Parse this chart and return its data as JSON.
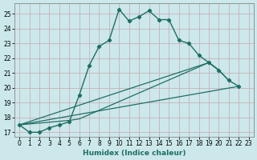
{
  "xlabel": "Humidex (Indice chaleur)",
  "background_color": "#cce8ea",
  "grid_color": "#b0d0d3",
  "line_color": "#1e6e64",
  "xlim": [
    -0.5,
    23.5
  ],
  "ylim": [
    16.7,
    25.7
  ],
  "xticks": [
    0,
    1,
    2,
    3,
    4,
    5,
    6,
    7,
    8,
    9,
    10,
    11,
    12,
    13,
    14,
    15,
    16,
    17,
    18,
    19,
    20,
    21,
    22,
    23
  ],
  "yticks": [
    17,
    18,
    19,
    20,
    21,
    22,
    23,
    24,
    25
  ],
  "main_x": [
    0,
    1,
    2,
    3,
    4,
    5,
    6,
    7,
    8,
    9,
    10,
    11,
    12,
    13,
    14,
    15,
    16,
    17,
    18,
    19,
    20,
    21,
    22
  ],
  "main_y": [
    17.5,
    17.0,
    17.0,
    17.3,
    17.5,
    17.7,
    19.5,
    21.5,
    22.8,
    23.2,
    25.3,
    24.5,
    24.8,
    25.2,
    24.6,
    24.6,
    23.2,
    23.0,
    22.2,
    21.7,
    21.2,
    20.5,
    20.1
  ],
  "line1_x": [
    0,
    22
  ],
  "line1_y": [
    17.5,
    20.1
  ],
  "line2_x": [
    0,
    19,
    20,
    21
  ],
  "line2_y": [
    17.5,
    21.7,
    21.2,
    20.5
  ],
  "line3_x": [
    0,
    5,
    6,
    19,
    20
  ],
  "line3_y": [
    17.5,
    17.8,
    17.9,
    21.7,
    21.2
  ]
}
